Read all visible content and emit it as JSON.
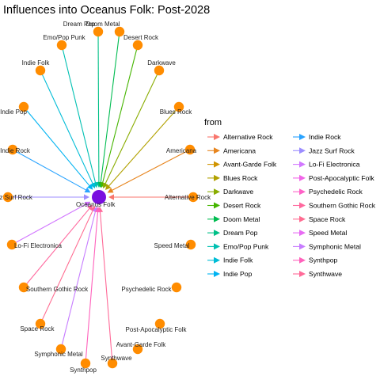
{
  "title": "Influences into Oceanus Folk: Post-2028",
  "center": {
    "label": "Oceanus Folk",
    "color": "#7A0FE0"
  },
  "node_color": "#FF8C00",
  "nodes": [
    {
      "label": "Dream Pop",
      "edge": true
    },
    {
      "label": "Doom Metal",
      "edge": true
    },
    {
      "label": "Desert Rock",
      "edge": true
    },
    {
      "label": "Emo/Pop Punk",
      "edge": true
    },
    {
      "label": "Darkwave",
      "edge": true
    },
    {
      "label": "Indie Folk",
      "edge": true
    },
    {
      "label": "Blues Rock",
      "edge": true
    },
    {
      "label": "Indie Pop",
      "edge": true
    },
    {
      "label": "Indie Rock",
      "edge": true
    },
    {
      "label": "Americana",
      "edge": true
    },
    {
      "label": "Jazz Surf Rock",
      "edge": true
    },
    {
      "label": "Alternative Rock",
      "edge": true
    },
    {
      "label": "Lo-Fi Electronica",
      "edge": true
    },
    {
      "label": "Speed Metal",
      "edge": false
    },
    {
      "label": "Southern Gothic Rock",
      "edge": true
    },
    {
      "label": "Psychedelic Rock",
      "edge": false
    },
    {
      "label": "Space Rock",
      "edge": true
    },
    {
      "label": "Post-Apocalyptic Folk",
      "edge": false
    },
    {
      "label": "Symphonic Metal",
      "edge": true
    },
    {
      "label": "Avant-Garde Folk",
      "edge": false
    },
    {
      "label": "Synthwave",
      "edge": true
    },
    {
      "label": "Synthpop",
      "edge": true
    }
  ],
  "legend": {
    "title": "from",
    "items": [
      {
        "label": "Alternative Rock",
        "color": "#F8766D"
      },
      {
        "label": "Americana",
        "color": "#E7851E"
      },
      {
        "label": "Avant-Garde Folk",
        "color": "#D09400"
      },
      {
        "label": "Blues Rock",
        "color": "#B2A100"
      },
      {
        "label": "Darkwave",
        "color": "#89AC00"
      },
      {
        "label": "Desert Rock",
        "color": "#45B500"
      },
      {
        "label": "Doom Metal",
        "color": "#00BC51"
      },
      {
        "label": "Dream Pop",
        "color": "#00C087"
      },
      {
        "label": "Emo/Pop Punk",
        "color": "#00C0B2"
      },
      {
        "label": "Indie Folk",
        "color": "#00BCD6"
      },
      {
        "label": "Indie Pop",
        "color": "#00B3F2"
      },
      {
        "label": "Indie Rock",
        "color": "#29A3FF"
      },
      {
        "label": "Jazz Surf Rock",
        "color": "#9C8DFF"
      },
      {
        "label": "Lo-Fi Electronica",
        "color": "#D277FF"
      },
      {
        "label": "Post-Apocalyptic Folk",
        "color": "#F166E8"
      },
      {
        "label": "Psychedelic Rock",
        "color": "#FF61C7"
      },
      {
        "label": "Southern Gothic Rock",
        "color": "#FF689E"
      },
      {
        "label": "Space Rock",
        "color": "#FF6C91"
      },
      {
        "label": "Speed Metal",
        "color": "#E76BF3"
      },
      {
        "label": "Symphonic Metal",
        "color": "#C77CFF"
      },
      {
        "label": "Synthpop",
        "color": "#FF62BC"
      },
      {
        "label": "Synthwave",
        "color": "#FF6A98"
      }
    ]
  }
}
